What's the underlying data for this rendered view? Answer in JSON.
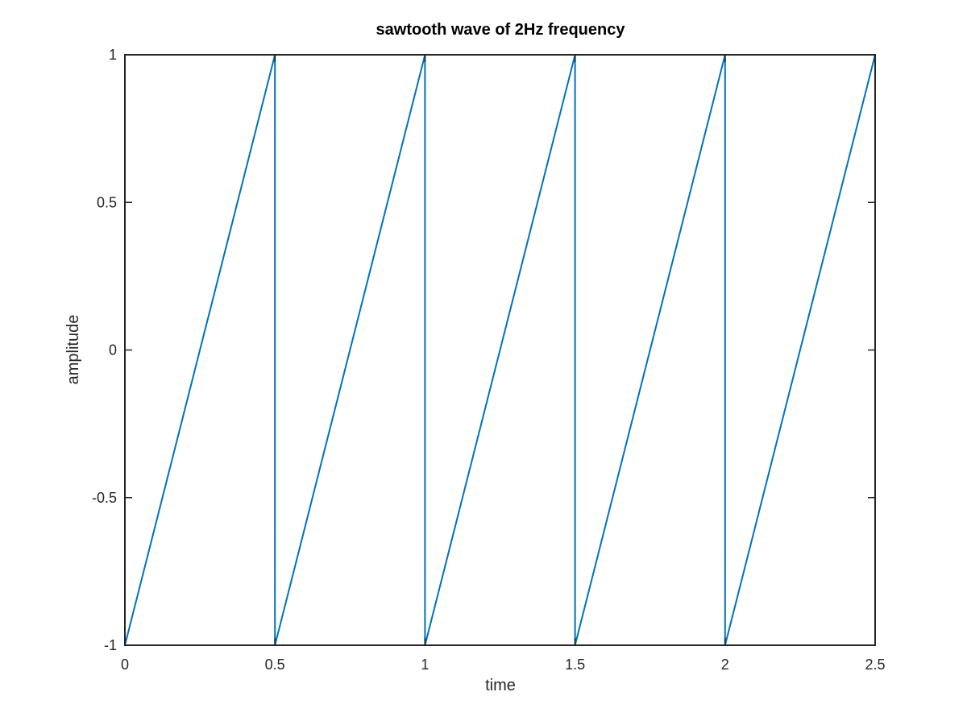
{
  "chart_data": {
    "type": "line",
    "title": "sawtooth wave of 2Hz frequency",
    "xlabel": "time",
    "ylabel": "amplitude",
    "xlim": [
      0,
      2.5
    ],
    "ylim": [
      -1,
      1
    ],
    "xticks": [
      0,
      0.5,
      1,
      1.5,
      2,
      2.5
    ],
    "xtick_labels": [
      "0",
      "0.5",
      "1",
      "1.5",
      "2",
      "2.5"
    ],
    "yticks": [
      -1,
      -0.5,
      0,
      0.5,
      1
    ],
    "ytick_labels": [
      "-1",
      "-0.5",
      "0",
      "0.5",
      "1"
    ],
    "grid": false,
    "series": [
      {
        "color": "#0072BD",
        "x": [
          0,
          0.5,
          0.5,
          1,
          1,
          1.5,
          1.5,
          2,
          2,
          2.5,
          2.5
        ],
        "y": [
          -1,
          1,
          -1,
          1,
          -1,
          1,
          -1,
          1,
          -1,
          1,
          -1
        ]
      }
    ]
  }
}
